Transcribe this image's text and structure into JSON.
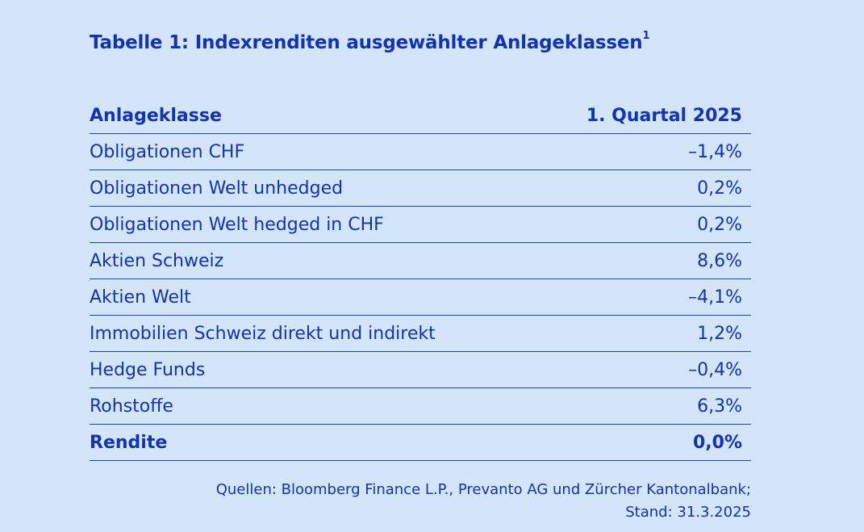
{
  "title": "Tabelle 1: Indexrenditen ausgewählter Anlageklassen",
  "title_footnote": "1",
  "header": {
    "category": "Anlageklasse",
    "period": "1. Quartal 2025"
  },
  "rows": [
    {
      "label": "Obligationen CHF",
      "value": "–1,4%"
    },
    {
      "label": "Obligationen Welt unhedged",
      "value": "0,2%"
    },
    {
      "label": "Obligationen Welt hedged in CHF",
      "value": "0,2%"
    },
    {
      "label": "Aktien Schweiz",
      "value": "8,6%"
    },
    {
      "label": "Aktien Welt",
      "value": "–4,1%"
    },
    {
      "label": "Immobilien Schweiz direkt und indirekt",
      "value": "1,2%"
    },
    {
      "label": "Hedge Funds",
      "value": "–0,4%"
    },
    {
      "label": "Rohstoffe",
      "value": "6,3%"
    }
  ],
  "total": {
    "label": "Rendite",
    "value": "0,0%"
  },
  "source": {
    "line1": "Quellen: Bloomberg Finance L.P., Prevanto AG und Zürcher Kantonalbank;",
    "line2": "Stand: 31.3.2025"
  },
  "colors": {
    "background": "#d3e5fb",
    "text": "#1432b4"
  }
}
